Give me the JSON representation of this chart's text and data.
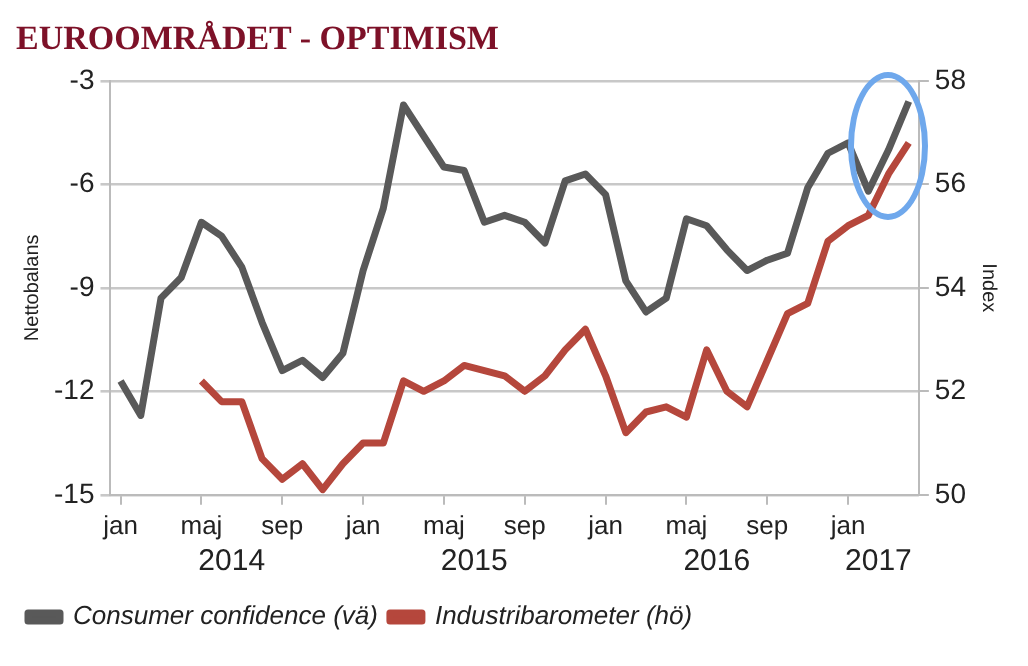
{
  "chart_data": {
    "type": "line",
    "title": "EUROOMRÅDET - OPTIMISM",
    "ylabel": "Nettobalans",
    "y2label": "Index",
    "categories": [
      "jan",
      null,
      null,
      null,
      "maj",
      null,
      null,
      null,
      "sep",
      null,
      null,
      null,
      "jan",
      null,
      null,
      null,
      "maj",
      null,
      null,
      null,
      "sep",
      null,
      null,
      null,
      "jan",
      null,
      null,
      null,
      "maj",
      null,
      null,
      null,
      "sep",
      null,
      null,
      null,
      "jan",
      null,
      null,
      null
    ],
    "annotations": [
      "2014",
      "2015",
      "2016",
      "2017"
    ],
    "series": [
      {
        "name": "Consumer confidence (vä)",
        "color": "#595959",
        "values": [
          -11.7,
          -12.7,
          -9.3,
          -8.7,
          -7.1,
          -7.5,
          -8.4,
          -10.0,
          -11.4,
          -11.1,
          -11.6,
          -10.9,
          -8.5,
          -6.7,
          -3.7,
          -4.6,
          -5.5,
          -5.6,
          -7.1,
          -6.9,
          -7.1,
          -7.7,
          -5.9,
          -5.7,
          -6.3,
          -8.8,
          -9.7,
          -9.3,
          -7.0,
          -7.2,
          -7.9,
          -8.5,
          -8.2,
          -8.0,
          -6.1,
          -5.1,
          -4.8,
          -6.2,
          -5.0,
          -3.6
        ]
      },
      {
        "name": "Industribarometer (hö)",
        "color": "#b5473c",
        "axis": "y2",
        "values": [
          null,
          null,
          null,
          null,
          52.2,
          51.8,
          51.8,
          50.7,
          50.3,
          50.6,
          50.1,
          50.6,
          51.0,
          51.0,
          52.2,
          52.0,
          52.2,
          52.5,
          52.4,
          52.3,
          52.0,
          52.3,
          52.8,
          53.2,
          52.3,
          51.2,
          51.6,
          51.7,
          51.5,
          52.8,
          52.0,
          51.7,
          52.6,
          53.5,
          53.7,
          54.9,
          55.2,
          55.4,
          56.2,
          56.8
        ]
      }
    ],
    "ylim": [
      -15,
      -3
    ],
    "yticks": [
      -15,
      -12,
      -9,
      -6,
      -3
    ],
    "y2lim": [
      50,
      58
    ],
    "y2ticks": [
      50,
      52,
      54,
      56,
      58
    ],
    "grid": "y",
    "legend": "bottom left",
    "marker": "none",
    "line_style": "solid"
  }
}
